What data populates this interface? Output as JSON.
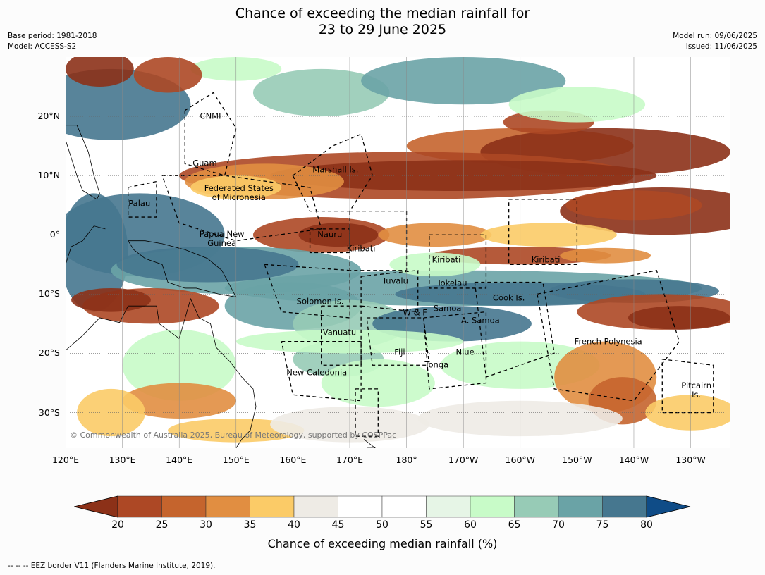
{
  "title_line1": "Chance of exceeding the median rainfall for",
  "title_line2": "23 to 29 June 2025",
  "meta_left": {
    "base_period": "Base period: 1981-2018",
    "model": "Model: ACCESS-S2"
  },
  "meta_right": {
    "model_run": "Model run: 09/06/2025",
    "issued": "Issued: 11/06/2025"
  },
  "map": {
    "lon_range": [
      120,
      237
    ],
    "lat_range": [
      -36,
      30
    ],
    "lat_labels": [
      {
        "lat": 20,
        "text": "20°N"
      },
      {
        "lat": 10,
        "text": "10°N"
      },
      {
        "lat": 0,
        "text": "0°"
      },
      {
        "lat": -10,
        "text": "10°S"
      },
      {
        "lat": -20,
        "text": "20°S"
      },
      {
        "lat": -30,
        "text": "30°S"
      }
    ],
    "lon_labels": [
      {
        "lon": 120,
        "text": "120°E"
      },
      {
        "lon": 130,
        "text": "130°E"
      },
      {
        "lon": 140,
        "text": "140°E"
      },
      {
        "lon": 150,
        "text": "150°E"
      },
      {
        "lon": 160,
        "text": "160°E"
      },
      {
        "lon": 170,
        "text": "170°E"
      },
      {
        "lon": 180,
        "text": "180°"
      },
      {
        "lon": 190,
        "text": "170°W"
      },
      {
        "lon": 200,
        "text": "160°W"
      },
      {
        "lon": 210,
        "text": "150°W"
      },
      {
        "lon": 220,
        "text": "140°W"
      },
      {
        "lon": 230,
        "text": "130°W"
      }
    ],
    "regions": [
      {
        "name": "CNMI",
        "lon": 145.5,
        "lat": 20
      },
      {
        "name": "Guam",
        "lon": 144.5,
        "lat": 12
      },
      {
        "name": "Marshall Is.",
        "lon": 167.5,
        "lat": 11
      },
      {
        "name": "Federated States\nof Micronesia",
        "lon": 150.5,
        "lat": 7
      },
      {
        "name": "Palau",
        "lon": 133,
        "lat": 5.3
      },
      {
        "name": "Papua New\nGuinea",
        "lon": 147.5,
        "lat": -0.7
      },
      {
        "name": "Nauru",
        "lon": 166.5,
        "lat": 0
      },
      {
        "name": "Kiribati",
        "lon": 172,
        "lat": -2.3
      },
      {
        "name": "Kiribati",
        "lon": 187,
        "lat": -4.3
      },
      {
        "name": "Kiribati",
        "lon": 204.5,
        "lat": -4.3
      },
      {
        "name": "Tuvalu",
        "lon": 178,
        "lat": -7.8
      },
      {
        "name": "Tokelau",
        "lon": 188,
        "lat": -8.2
      },
      {
        "name": "Cook Is.",
        "lon": 198,
        "lat": -10.7
      },
      {
        "name": "Solomon Is.",
        "lon": 164.8,
        "lat": -11.3
      },
      {
        "name": "Samoa",
        "lon": 187.2,
        "lat": -12.5
      },
      {
        "name": "W & F",
        "lon": 181.5,
        "lat": -13.2
      },
      {
        "name": "A. Samoa",
        "lon": 193,
        "lat": -14.5
      },
      {
        "name": "Vanuatu",
        "lon": 168.2,
        "lat": -16.5
      },
      {
        "name": "French Polynesia",
        "lon": 215.5,
        "lat": -18
      },
      {
        "name": "Fiji",
        "lon": 178.8,
        "lat": -19.8
      },
      {
        "name": "Niue",
        "lon": 190.3,
        "lat": -19.8
      },
      {
        "name": "Tonga",
        "lon": 185.3,
        "lat": -22
      },
      {
        "name": "New Caledonia",
        "lon": 164.2,
        "lat": -23.3
      },
      {
        "name": "Pitcairn\nIs.",
        "lon": 231,
        "lat": -26.3
      }
    ],
    "copyright": "© Commonwealth of Australia 2025, Bureau of Meteorology, supported by COSPPac"
  },
  "colorbar": {
    "ticks": [
      "20",
      "25",
      "30",
      "35",
      "40",
      "45",
      "50",
      "55",
      "60",
      "65",
      "70",
      "75",
      "80"
    ],
    "colors": [
      "#8c3118",
      "#ad4825",
      "#c5642d",
      "#e18e41",
      "#fbcb67",
      "#eeebe5",
      "#ffffff",
      "#ffffff",
      "#e6f5e6",
      "#c8fbc8",
      "#97cbb6",
      "#6aa3a6",
      "#46778f",
      "#0f4c87"
    ],
    "label": "Chance of exceeding median rainfall (%)"
  },
  "footnote": "--  --  -- EEZ border V11 (Flanders Marine Institute, 2019)."
}
